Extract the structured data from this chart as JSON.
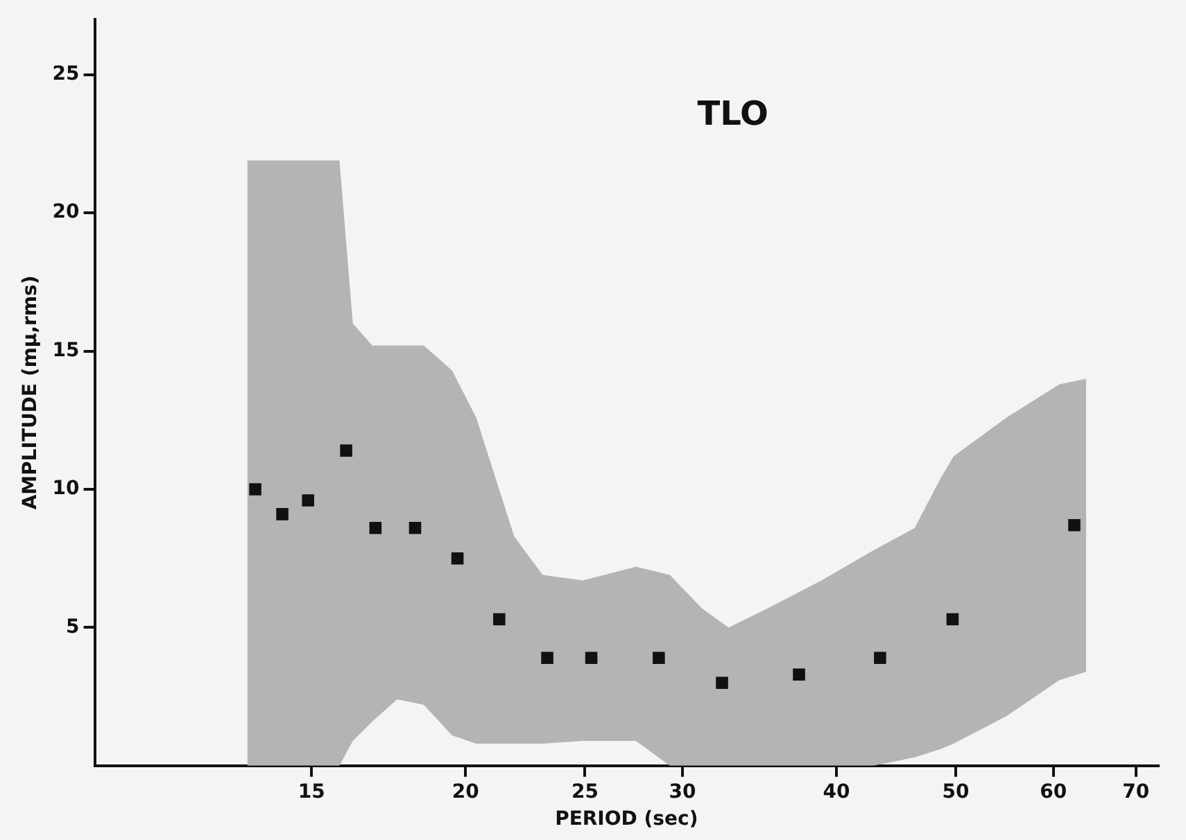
{
  "chart_data": {
    "type": "scatter",
    "xlabel": "PERIOD (sec)",
    "ylabel": "AMPLITUDE (mμ,rms)",
    "annotations": [
      "TLO"
    ],
    "log": "x",
    "xlim": [
      10,
      73
    ],
    "xticks": [
      15,
      20,
      25,
      30,
      40,
      50,
      60,
      70
    ],
    "ylim": [
      0,
      27
    ],
    "yticks": [
      5,
      10,
      15,
      20,
      25
    ],
    "marker": "square",
    "grid": false,
    "series": [
      {
        "type": "area",
        "color": "#b4b4b4",
        "x": [
          13.3,
          15.8,
          16.2,
          16.8,
          17.6,
          18.5,
          19.5,
          20.4,
          21.9,
          23.1,
          24.9,
          27.5,
          29.3,
          31.1,
          32.7,
          35.2,
          38.9,
          42.9,
          46.3,
          48.6,
          49.8,
          55.0,
          60.7,
          63.8
        ],
        "lower": [
          0,
          0,
          0.9,
          1.6,
          2.4,
          2.2,
          1.1,
          0.8,
          0.8,
          0.8,
          0.9,
          0.9,
          0,
          0,
          0,
          0,
          0,
          0,
          0.3,
          0.6,
          0.8,
          1.8,
          3.1,
          3.4
        ],
        "upper": [
          21.9,
          21.9,
          16,
          15.2,
          15.2,
          15.2,
          14.3,
          12.6,
          8.3,
          6.9,
          6.7,
          7.2,
          6.9,
          5.7,
          5.0,
          5.7,
          6.7,
          7.8,
          8.6,
          10.4,
          11.2,
          12.6,
          13.8,
          14.0
        ],
        "values": [
          null,
          null,
          null,
          null,
          null,
          null,
          null,
          null,
          null,
          null,
          null,
          null,
          null,
          null,
          null,
          null,
          null,
          null,
          null,
          null,
          null,
          null,
          null,
          null
        ]
      },
      {
        "color": "#111111",
        "x": [
          13.5,
          14.2,
          14.9,
          16.0,
          16.9,
          18.2,
          19.7,
          21.3,
          23.3,
          25.3,
          28.7,
          32.3,
          37.3,
          43.4,
          49.7,
          62.4
        ],
        "values": [
          10.0,
          9.1,
          9.6,
          11.4,
          8.6,
          8.6,
          7.5,
          5.3,
          3.9,
          3.9,
          3.9,
          3.0,
          3.3,
          3.9,
          5.3,
          8.7
        ]
      }
    ]
  }
}
